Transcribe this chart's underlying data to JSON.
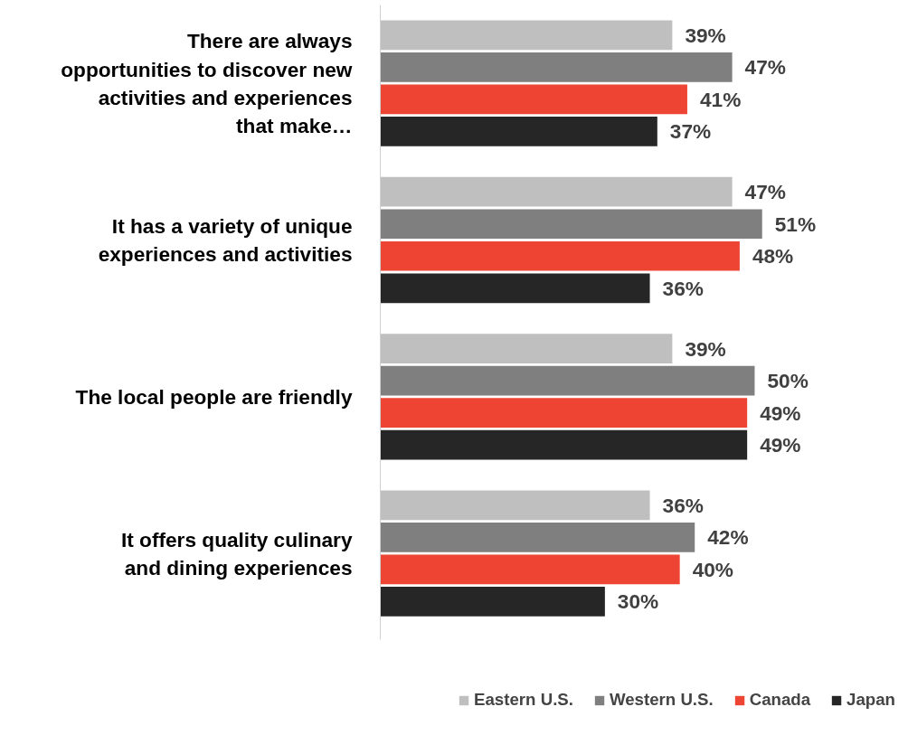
{
  "chart_data": {
    "type": "bar",
    "orientation": "horizontal",
    "categories": [
      "There are always opportunities to discover new activities and experiences that make…",
      "It has a variety of unique experiences and activities",
      "The local people are friendly",
      "It offers quality culinary and dining experiences"
    ],
    "series": [
      {
        "name": "Eastern U.S.",
        "color": "#bfbfbf",
        "values": [
          39,
          47,
          39,
          36
        ],
        "value_labels": [
          "39%",
          "47%",
          "39%",
          "36%"
        ]
      },
      {
        "name": "Western U.S.",
        "color": "#7f7f7f",
        "values": [
          47,
          51,
          50,
          42
        ],
        "value_labels": [
          "47%",
          "51%",
          "50%",
          "42%"
        ]
      },
      {
        "name": "Canada",
        "color": "#ee4433",
        "values": [
          41,
          48,
          49,
          40
        ],
        "value_labels": [
          "41%",
          "48%",
          "49%",
          "40%"
        ]
      },
      {
        "name": "Japan",
        "color": "#262626",
        "values": [
          37,
          36,
          49,
          30
        ],
        "value_labels": [
          "37%",
          "36%",
          "49%",
          "30%"
        ]
      }
    ],
    "legend": "bottom",
    "grid": false
  }
}
